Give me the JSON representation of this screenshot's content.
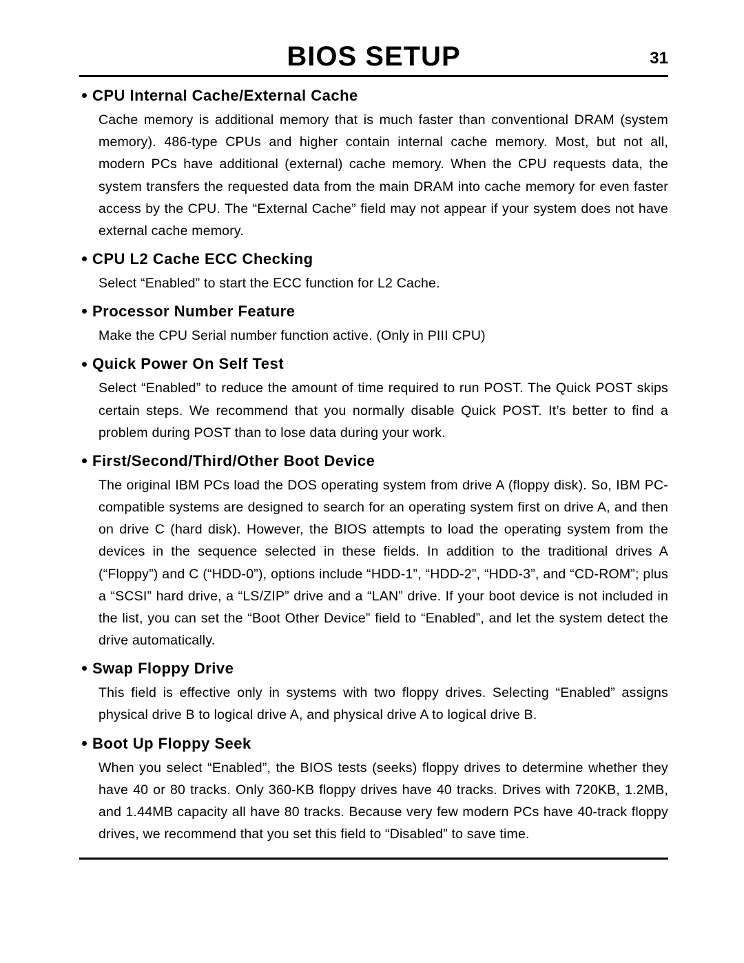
{
  "header": {
    "title": "BIOS SETUP",
    "page_number": "31"
  },
  "sections": [
    {
      "heading": "CPU Internal Cache/External Cache",
      "body": "Cache memory is additional memory that is much faster than conventional DRAM (system memory).  486-type CPUs and higher contain internal cache memory.  Most, but not all, modern PCs have additional (external) cache memory.  When the CPU requests data, the system transfers the requested data from the main DRAM into cache memory for even faster access by the CPU.  The “External Cache” field may not appear if your system does not have external cache memory."
    },
    {
      "heading": "CPU L2 Cache ECC Checking",
      "body": "Select “Enabled” to start the ECC function for L2 Cache."
    },
    {
      "heading": "Processor Number Feature",
      "body": "Make the CPU Serial number function active.  (Only in PIII CPU)"
    },
    {
      "heading": "Quick Power On Self Test",
      "body": "Select “Enabled” to reduce the amount of time required to run POST.  The Quick POST skips certain steps.  We recommend that you normally disable Quick POST.  It’s better to find a problem during POST than to lose data during your work."
    },
    {
      "heading": "First/Second/Third/Other Boot Device",
      "body": "The original IBM PCs load the DOS operating system from drive A (floppy disk).  So, IBM PC-compatible systems are designed to search for an operating system first on drive A, and then on drive C (hard disk).  However, the BIOS attempts to load the operating system from the devices in the sequence selected in these fields.  In addition to the traditional drives A (“Floppy”) and C (“HDD-0”), options include “HDD-1”, “HDD-2”, “HDD-3”, and “CD-ROM”; plus a “SCSI” hard drive, a “LS/ZIP” drive and a “LAN” drive.  If your boot device is not included in the list, you can set the “Boot Other Device” field to “Enabled”, and let the system detect the drive automatically."
    },
    {
      "heading": "Swap Floppy Drive",
      "body": "This field is effective only in systems with two floppy drives. Selecting “Enabled” assigns physical drive B to logical drive A, and physical drive A to logical drive B."
    },
    {
      "heading": "Boot Up Floppy Seek",
      "body": "When you select “Enabled”, the BIOS tests (seeks) floppy drives to determine whether they have 40 or 80 tracks.  Only 360-KB floppy drives have 40 tracks.  Drives with 720KB, 1.2MB, and 1.44MB capacity all have 80 tracks.  Because very few modern PCs have 40-track floppy drives, we recommend that you set this field to “Disabled” to save time."
    }
  ]
}
